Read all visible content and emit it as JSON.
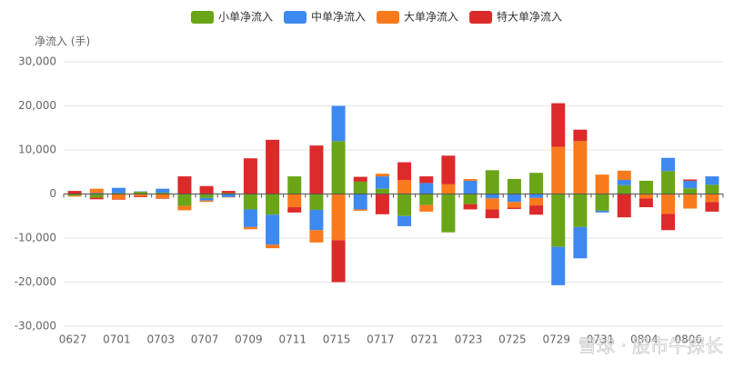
{
  "chart_data": {
    "type": "bar",
    "stacked": true,
    "y_axis_label": "净流入 (手)",
    "watermark": "雪球 · 股市牛探长",
    "categories": [
      "0627",
      null,
      "0701",
      null,
      "0703",
      null,
      "0707",
      null,
      "0709",
      null,
      "0711",
      null,
      "0715",
      null,
      "0717",
      null,
      "0721",
      null,
      "0723",
      null,
      "0725",
      null,
      "0729",
      null,
      "0731",
      null,
      "0804",
      null,
      "0806",
      null
    ],
    "series": [
      {
        "name": "小单净流入",
        "color": "#6aa518",
        "values": [
          -400,
          -800,
          200,
          500,
          300,
          -2700,
          -900,
          200,
          -3500,
          -4700,
          4000,
          -3600,
          12000,
          2800,
          1200,
          -5000,
          -2500,
          -8700,
          -2300,
          5400,
          3400,
          4800,
          -12000,
          -7500,
          -3800,
          2000,
          3000,
          5200,
          1300,
          2100
        ]
      },
      {
        "name": "中单净流入",
        "color": "#3d89f0",
        "values": [
          100,
          200,
          1200,
          100,
          900,
          0,
          -600,
          -700,
          -4000,
          -6800,
          0,
          -4600,
          8000,
          -3500,
          2800,
          -2300,
          2500,
          0,
          3000,
          -1000,
          -1800,
          -900,
          -8700,
          -7100,
          -400,
          1200,
          0,
          3000,
          1700,
          1900
        ]
      },
      {
        "name": "大单净流入",
        "color": "#f97a1c",
        "values": [
          -200,
          1000,
          -1200,
          -500,
          -1000,
          -1000,
          -300,
          -100,
          -500,
          -800,
          -3000,
          -2800,
          -10500,
          -300,
          600,
          3200,
          -1500,
          2200,
          400,
          -2500,
          -1300,
          -1700,
          10700,
          12000,
          4400,
          2100,
          -1000,
          -4500,
          -3300,
          -1800
        ]
      },
      {
        "name": "特大单净流入",
        "color": "#dc2a2a",
        "values": [
          600,
          -400,
          -100,
          -200,
          -100,
          4000,
          1800,
          500,
          8100,
          12300,
          -1200,
          11000,
          -9500,
          1100,
          -4600,
          4000,
          1500,
          6500,
          -1200,
          -2000,
          -300,
          -2100,
          9900,
          2600,
          0,
          -5300,
          -2000,
          -3700,
          300,
          -2200
        ]
      }
    ],
    "ylim": [
      -30000,
      30000
    ],
    "yticks": [
      {
        "value": -30000,
        "label": "-30,000"
      },
      {
        "value": -20000,
        "label": "-20,000"
      },
      {
        "value": -10000,
        "label": "-10,000"
      },
      0,
      {
        "value": 10000,
        "label": "10,000"
      },
      {
        "value": 20000,
        "label": "20,000"
      },
      {
        "value": 30000,
        "label": "30,000"
      }
    ],
    "grid": true,
    "legend": "top"
  }
}
